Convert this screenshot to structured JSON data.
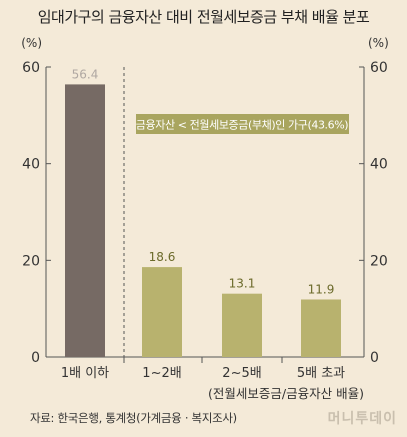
{
  "title": "임대가구의 금융자산 대비 전월세보증금 부채 배율 분포",
  "chart_data": {
    "type": "bar",
    "categories": [
      "1배 이하",
      "1~2배",
      "2~5배",
      "5배 초과"
    ],
    "values": [
      56.4,
      18.6,
      13.1,
      11.9
    ],
    "value_labels": [
      "56.4",
      "18.6",
      "13.1",
      "11.9"
    ],
    "ylim": [
      0,
      60
    ],
    "yticks": [
      "0",
      "20",
      "40",
      "60"
    ],
    "y_unit_left": "(%)",
    "y_unit_right": "(%)",
    "xlabel": "(전월세보증금/금융자산 배율)",
    "annotation": "금융자산 < 전월세보증금(부채)인 가구(43.6%)",
    "colors": {
      "first_bar": "#766a64",
      "other_bars": "#b8b26e",
      "first_label": "#b0a8a2",
      "other_labels": "#6b6a2a",
      "annotation_bg": "#a9a55f"
    },
    "grid": false
  },
  "source": "자료: 한국은행, 통계청(가계금융 · 복지조사)",
  "watermark": "머니투데이"
}
